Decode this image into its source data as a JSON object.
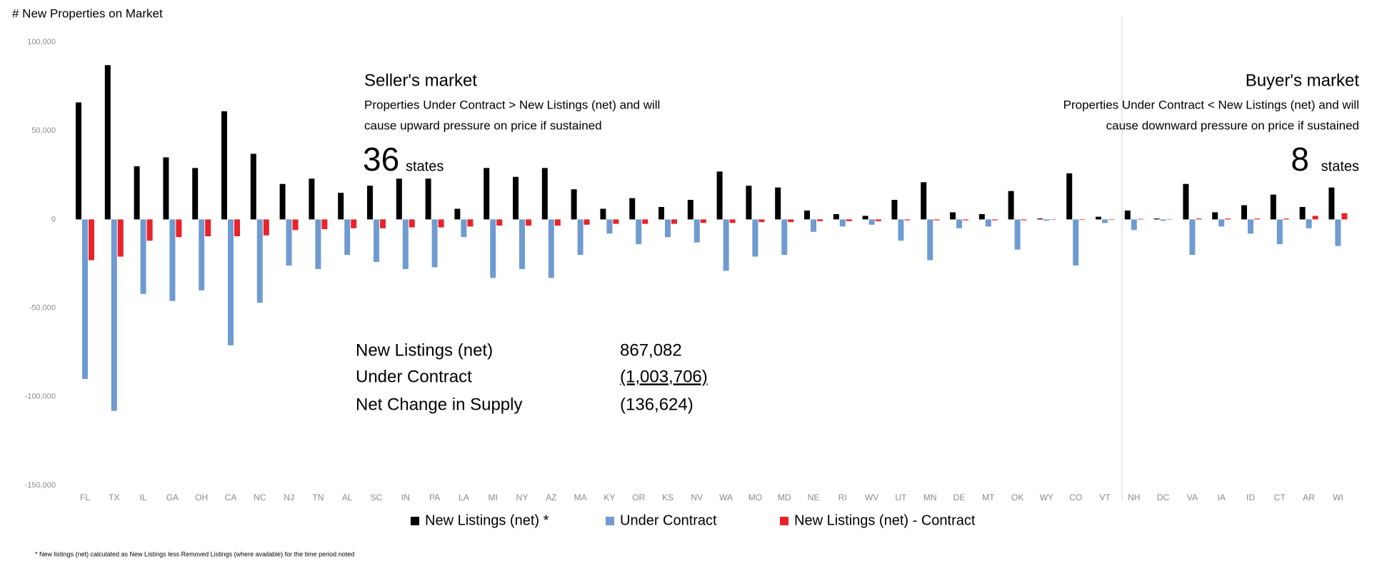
{
  "chart_data": {
    "type": "bar",
    "title": "# New Properties on Market",
    "categories": [
      "FL",
      "TX",
      "IL",
      "GA",
      "OH",
      "CA",
      "NC",
      "NJ",
      "TN",
      "AL",
      "SC",
      "IN",
      "PA",
      "LA",
      "MI",
      "NY",
      "AZ",
      "MA",
      "KY",
      "OR",
      "KS",
      "NV",
      "WA",
      "MO",
      "MD",
      "NE",
      "RI",
      "WV",
      "UT",
      "MN",
      "DE",
      "MT",
      "OK",
      "WY",
      "CO",
      "VT",
      "NH",
      "DC",
      "VA",
      "IA",
      "ID",
      "CT",
      "AR",
      "WI"
    ],
    "series": [
      {
        "name": "New Listings (net) *",
        "color": "#000000",
        "values": [
          66000,
          87000,
          30000,
          35000,
          29000,
          61000,
          37000,
          20000,
          23000,
          15000,
          19000,
          23000,
          23000,
          6000,
          29000,
          24000,
          29000,
          17000,
          6000,
          12000,
          7000,
          11000,
          27000,
          19000,
          18000,
          5000,
          3000,
          2000,
          11000,
          21000,
          4000,
          3000,
          16000,
          500,
          26000,
          1500,
          5000,
          500,
          20000,
          4000,
          8000,
          14000,
          7000,
          18000
        ]
      },
      {
        "name": "Under Contract",
        "color": "#6f9bd1",
        "values": [
          -90000,
          -108000,
          -42000,
          -46000,
          -40000,
          -71000,
          -47000,
          -26000,
          -28000,
          -20000,
          -24000,
          -28000,
          -27000,
          -10000,
          -33000,
          -28000,
          -33000,
          -20000,
          -8000,
          -14000,
          -10000,
          -13000,
          -29000,
          -21000,
          -20000,
          -7000,
          -4000,
          -3000,
          -12000,
          -23000,
          -5000,
          -4000,
          -17000,
          -700,
          -26000,
          -2000,
          -6000,
          -800,
          -20000,
          -4000,
          -8000,
          -14000,
          -5000,
          -15000
        ]
      },
      {
        "name": "New Listings (net) - Contract",
        "color": "#e8232a",
        "values": [
          -23000,
          -21000,
          -12000,
          -10000,
          -9500,
          -9500,
          -9000,
          -6000,
          -5500,
          -5000,
          -5000,
          -4500,
          -4500,
          -4000,
          -3500,
          -3500,
          -3500,
          -3000,
          -2500,
          -2500,
          -2500,
          -2000,
          -2000,
          -1500,
          -1500,
          -1000,
          -1000,
          -1000,
          -500,
          -500,
          -500,
          -500,
          -500,
          -200,
          -300,
          -300,
          300,
          200,
          500,
          500,
          500,
          500,
          2000,
          3500
        ]
      }
    ],
    "ylim": [
      -150000,
      100000
    ],
    "yticks": [
      {
        "value": -150000,
        "label": "-150,000"
      },
      {
        "value": -100000,
        "label": "-100,000"
      },
      {
        "value": -50000,
        "label": "-50,000"
      },
      0,
      {
        "value": 50000,
        "label": "50,000"
      },
      {
        "value": 100000,
        "label": "100,000"
      }
    ],
    "legend": "bottom",
    "annotations": {
      "sellers": {
        "heading": "Seller's market",
        "lines": [
          "Properties Under Contract > New Listings (net) and will",
          "cause upward pressure on price if sustained"
        ],
        "count": 36,
        "unit": "states"
      },
      "buyers": {
        "heading": "Buyer's market",
        "lines": [
          "Properties Under Contract < New Listings (net) and will",
          "cause downward pressure on price if sustained"
        ],
        "count": 8,
        "unit": "states"
      }
    },
    "summary": [
      {
        "label": "New Listings (net)",
        "value": "867,082"
      },
      {
        "label": "Under Contract",
        "value": "(1,003,706)"
      },
      {
        "label": "Net Change in Supply",
        "value": "(136,624)"
      }
    ],
    "footnote": "* New listings (net) calculated as New Listings less Removed Listings (where available) for the time period noted"
  }
}
